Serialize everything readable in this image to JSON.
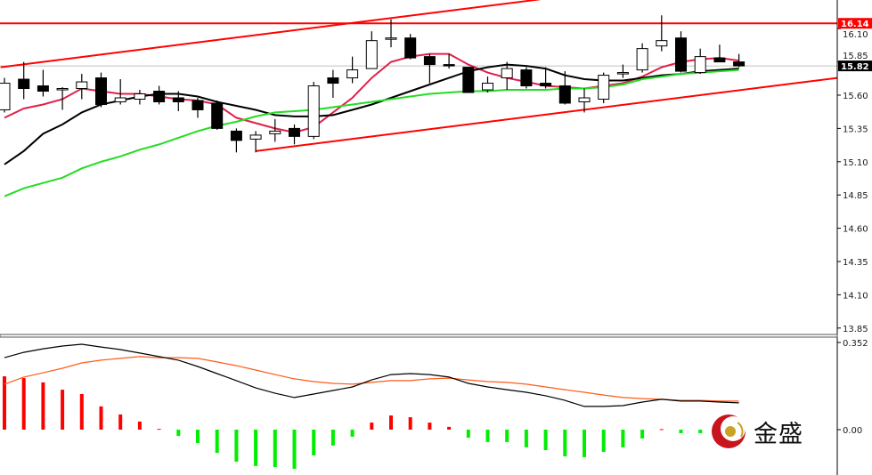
{
  "chart_data": [
    {
      "type": "candlestick",
      "panel": "price",
      "y_ticks": [
        "16.10",
        "15.85",
        "15.60",
        "15.35",
        "15.10",
        "14.85",
        "14.60",
        "14.35",
        "14.10",
        "13.85"
      ],
      "ylim": [
        13.85,
        16.32
      ],
      "candles": [
        {
          "o": 15.49,
          "h": 15.73,
          "l": 15.47,
          "c": 15.69
        },
        {
          "o": 15.72,
          "h": 15.85,
          "l": 15.57,
          "c": 15.65
        },
        {
          "o": 15.67,
          "h": 15.79,
          "l": 15.59,
          "c": 15.63
        },
        {
          "o": 15.65,
          "h": 15.66,
          "l": 15.49,
          "c": 15.65
        },
        {
          "o": 15.65,
          "h": 15.76,
          "l": 15.57,
          "c": 15.7
        },
        {
          "o": 15.73,
          "h": 15.77,
          "l": 15.51,
          "c": 15.53
        },
        {
          "o": 15.55,
          "h": 15.72,
          "l": 15.53,
          "c": 15.58
        },
        {
          "o": 15.57,
          "h": 15.64,
          "l": 15.53,
          "c": 15.61
        },
        {
          "o": 15.63,
          "h": 15.67,
          "l": 15.53,
          "c": 15.55
        },
        {
          "o": 15.58,
          "h": 15.63,
          "l": 15.48,
          "c": 15.55
        },
        {
          "o": 15.56,
          "h": 15.58,
          "l": 15.43,
          "c": 15.49
        },
        {
          "o": 15.54,
          "h": 15.56,
          "l": 15.34,
          "c": 15.35
        },
        {
          "o": 15.33,
          "h": 15.35,
          "l": 15.17,
          "c": 15.26
        },
        {
          "o": 15.27,
          "h": 15.33,
          "l": 15.17,
          "c": 15.3
        },
        {
          "o": 15.31,
          "h": 15.42,
          "l": 15.25,
          "c": 15.33
        },
        {
          "o": 15.35,
          "h": 15.38,
          "l": 15.23,
          "c": 15.29
        },
        {
          "o": 15.29,
          "h": 15.7,
          "l": 15.27,
          "c": 15.67
        },
        {
          "o": 15.73,
          "h": 15.79,
          "l": 15.58,
          "c": 15.69
        },
        {
          "o": 15.73,
          "h": 15.89,
          "l": 15.69,
          "c": 15.79
        },
        {
          "o": 15.8,
          "h": 16.08,
          "l": 15.8,
          "c": 16.01
        },
        {
          "o": 16.03,
          "h": 16.17,
          "l": 15.96,
          "c": 16.03
        },
        {
          "o": 16.03,
          "h": 16.06,
          "l": 15.87,
          "c": 15.88
        },
        {
          "o": 15.89,
          "h": 15.91,
          "l": 15.69,
          "c": 15.83
        },
        {
          "o": 15.83,
          "h": 15.91,
          "l": 15.8,
          "c": 15.82
        },
        {
          "o": 15.81,
          "h": 15.81,
          "l": 15.62,
          "c": 15.62
        },
        {
          "o": 15.64,
          "h": 15.74,
          "l": 15.62,
          "c": 15.69
        },
        {
          "o": 15.73,
          "h": 15.85,
          "l": 15.64,
          "c": 15.8
        },
        {
          "o": 15.79,
          "h": 15.81,
          "l": 15.65,
          "c": 15.67
        },
        {
          "o": 15.69,
          "h": 15.81,
          "l": 15.65,
          "c": 15.67
        },
        {
          "o": 15.67,
          "h": 15.78,
          "l": 15.53,
          "c": 15.54
        },
        {
          "o": 15.55,
          "h": 15.65,
          "l": 15.47,
          "c": 15.58
        },
        {
          "o": 15.57,
          "h": 15.77,
          "l": 15.54,
          "c": 15.75
        },
        {
          "o": 15.76,
          "h": 15.83,
          "l": 15.73,
          "c": 15.77
        },
        {
          "o": 15.79,
          "h": 15.99,
          "l": 15.77,
          "c": 15.95
        },
        {
          "o": 15.97,
          "h": 16.2,
          "l": 15.93,
          "c": 16.01
        },
        {
          "o": 16.03,
          "h": 16.08,
          "l": 15.77,
          "c": 15.78
        },
        {
          "o": 15.77,
          "h": 15.95,
          "l": 15.76,
          "c": 15.89
        },
        {
          "o": 15.88,
          "h": 15.98,
          "l": 15.85,
          "c": 15.85
        },
        {
          "o": 15.85,
          "h": 15.91,
          "l": 15.81,
          "c": 15.82
        }
      ],
      "moving_averages": [
        {
          "color": "#e0204a",
          "values": [
            15.43,
            15.5,
            15.53,
            15.57,
            15.65,
            15.63,
            15.61,
            15.61,
            15.59,
            15.57,
            15.56,
            15.53,
            15.43,
            15.39,
            15.35,
            15.32,
            15.36,
            15.47,
            15.58,
            15.73,
            15.85,
            15.89,
            15.91,
            15.91,
            15.83,
            15.77,
            15.73,
            15.7,
            15.67,
            15.66,
            15.65,
            15.67,
            15.69,
            15.74,
            15.81,
            15.85,
            15.87,
            15.88,
            15.86
          ]
        },
        {
          "color": "#000000",
          "values": [
            15.08,
            15.18,
            15.31,
            15.38,
            15.47,
            15.53,
            15.56,
            15.59,
            15.61,
            15.61,
            15.59,
            15.55,
            15.52,
            15.49,
            15.45,
            15.44,
            15.44,
            15.45,
            15.49,
            15.53,
            15.58,
            15.63,
            15.68,
            15.73,
            15.78,
            15.81,
            15.83,
            15.82,
            15.8,
            15.75,
            15.72,
            15.71,
            15.71,
            15.73,
            15.75,
            15.76,
            15.78,
            15.79,
            15.8
          ]
        },
        {
          "color": "#22dd22",
          "values": [
            14.84,
            14.9,
            14.94,
            14.98,
            15.05,
            15.1,
            15.14,
            15.19,
            15.23,
            15.28,
            15.33,
            15.37,
            15.4,
            15.44,
            15.47,
            15.48,
            15.49,
            15.51,
            15.53,
            15.55,
            15.57,
            15.59,
            15.61,
            15.62,
            15.63,
            15.63,
            15.64,
            15.64,
            15.64,
            15.65,
            15.65,
            15.66,
            15.68,
            15.72,
            15.74,
            15.76,
            15.77,
            15.78,
            15.79
          ]
        }
      ],
      "horizontal_line": {
        "price": 16.14,
        "label": "16.14",
        "color": "#ff0000"
      },
      "current_price": {
        "price": 15.82,
        "label": "15.82"
      },
      "trend_lines": [
        {
          "from": {
            "index": -0.2,
            "price": 15.81
          },
          "to": {
            "index": 27.7,
            "price": 16.32
          },
          "color": "#ff0000"
        },
        {
          "from": {
            "index": 13,
            "price": 15.18
          },
          "to": {
            "index": 43.1,
            "price": 15.73
          },
          "color": "#ff0000"
        }
      ],
      "colors": {
        "bull_body": "#ffffff",
        "bear_body": "#000000"
      }
    },
    {
      "type": "bar+line",
      "panel": "MACD",
      "y_ticks": [
        "0.352",
        "0.00"
      ],
      "ylim": [
        -0.176,
        0.375
      ],
      "histogram": [
        0.211,
        0.204,
        0.187,
        0.158,
        0.141,
        0.092,
        0.06,
        0.032,
        0.003,
        -0.025,
        -0.053,
        -0.092,
        -0.127,
        -0.144,
        -0.148,
        -0.155,
        -0.102,
        -0.063,
        -0.028,
        0.028,
        0.056,
        0.049,
        0.028,
        0.011,
        -0.032,
        -0.049,
        -0.049,
        -0.07,
        -0.081,
        -0.106,
        -0.109,
        -0.088,
        -0.07,
        -0.035,
        0.002,
        -0.014,
        -0.014,
        -0.011,
        -0.011
      ],
      "macd_line": {
        "color": "#000000",
        "values": [
          0.285,
          0.306,
          0.32,
          0.331,
          0.338,
          0.327,
          0.317,
          0.303,
          0.289,
          0.275,
          0.25,
          0.222,
          0.194,
          0.165,
          0.144,
          0.127,
          0.141,
          0.155,
          0.169,
          0.197,
          0.218,
          0.222,
          0.218,
          0.208,
          0.183,
          0.169,
          0.158,
          0.148,
          0.134,
          0.116,
          0.092,
          0.092,
          0.095,
          0.109,
          0.12,
          0.113,
          0.113,
          0.109,
          0.106
        ]
      },
      "signal_line": {
        "color": "#ff5a1a",
        "values": [
          0.18,
          0.208,
          0.225,
          0.243,
          0.264,
          0.275,
          0.282,
          0.289,
          0.285,
          0.285,
          0.282,
          0.268,
          0.253,
          0.236,
          0.218,
          0.201,
          0.19,
          0.183,
          0.18,
          0.187,
          0.194,
          0.194,
          0.201,
          0.204,
          0.197,
          0.19,
          0.187,
          0.18,
          0.169,
          0.158,
          0.148,
          0.137,
          0.127,
          0.123,
          0.12,
          0.116,
          0.116,
          0.113,
          0.113
        ]
      },
      "colors": {
        "positive": "#ff0000",
        "negative": "#00ee00"
      }
    }
  ],
  "logo": {
    "text": "金盛",
    "colors": {
      "ring": "#c8141c",
      "ball": "#c9a227"
    }
  }
}
